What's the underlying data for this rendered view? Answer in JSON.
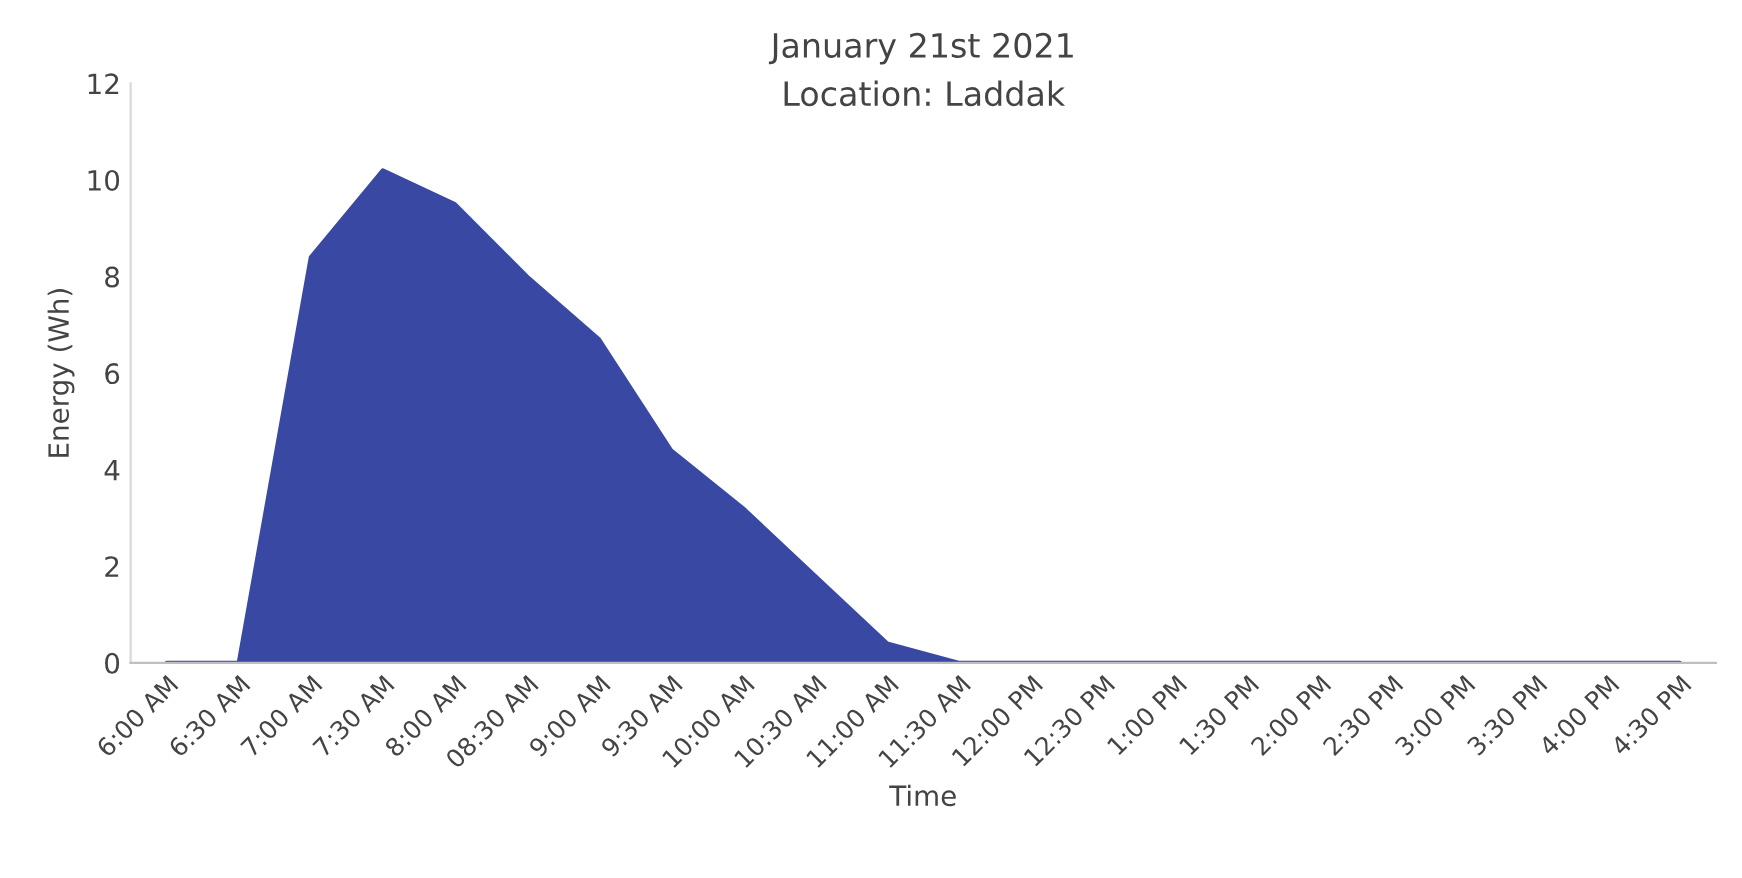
{
  "chart_data": {
    "type": "area",
    "title": "January 21st 2021",
    "subtitle": "Location: Laddak",
    "xlabel": "Time",
    "ylabel": "Energy (Wh)",
    "categories": [
      "6:00 AM",
      "6:30 AM",
      "7:00 AM",
      "7:30 AM",
      "8:00 AM",
      "08:30 AM",
      "9:00 AM",
      "9:30 AM",
      "10:00 AM",
      "10:30 AM",
      "11:00 AM",
      "11:30 AM",
      "12:00 PM",
      "12:30 PM",
      "1:00 PM",
      "1:30 PM",
      "2:00 PM",
      "2:30 PM",
      "3:00 PM",
      "3:30 PM",
      "4:00 PM",
      "4:30 PM"
    ],
    "series": [
      {
        "color": "#3949a3",
        "values": [
          0,
          0,
          8.4,
          10.2,
          9.5,
          8.0,
          6.7,
          4.4,
          3.2,
          1.8,
          0.4,
          0,
          0,
          0,
          0,
          0,
          0,
          0,
          0,
          0,
          0,
          0
        ]
      }
    ],
    "ylim": [
      0,
      12
    ],
    "yticks": [
      0,
      2,
      4,
      6,
      8,
      10,
      12
    ],
    "grid": false,
    "legend": false
  }
}
